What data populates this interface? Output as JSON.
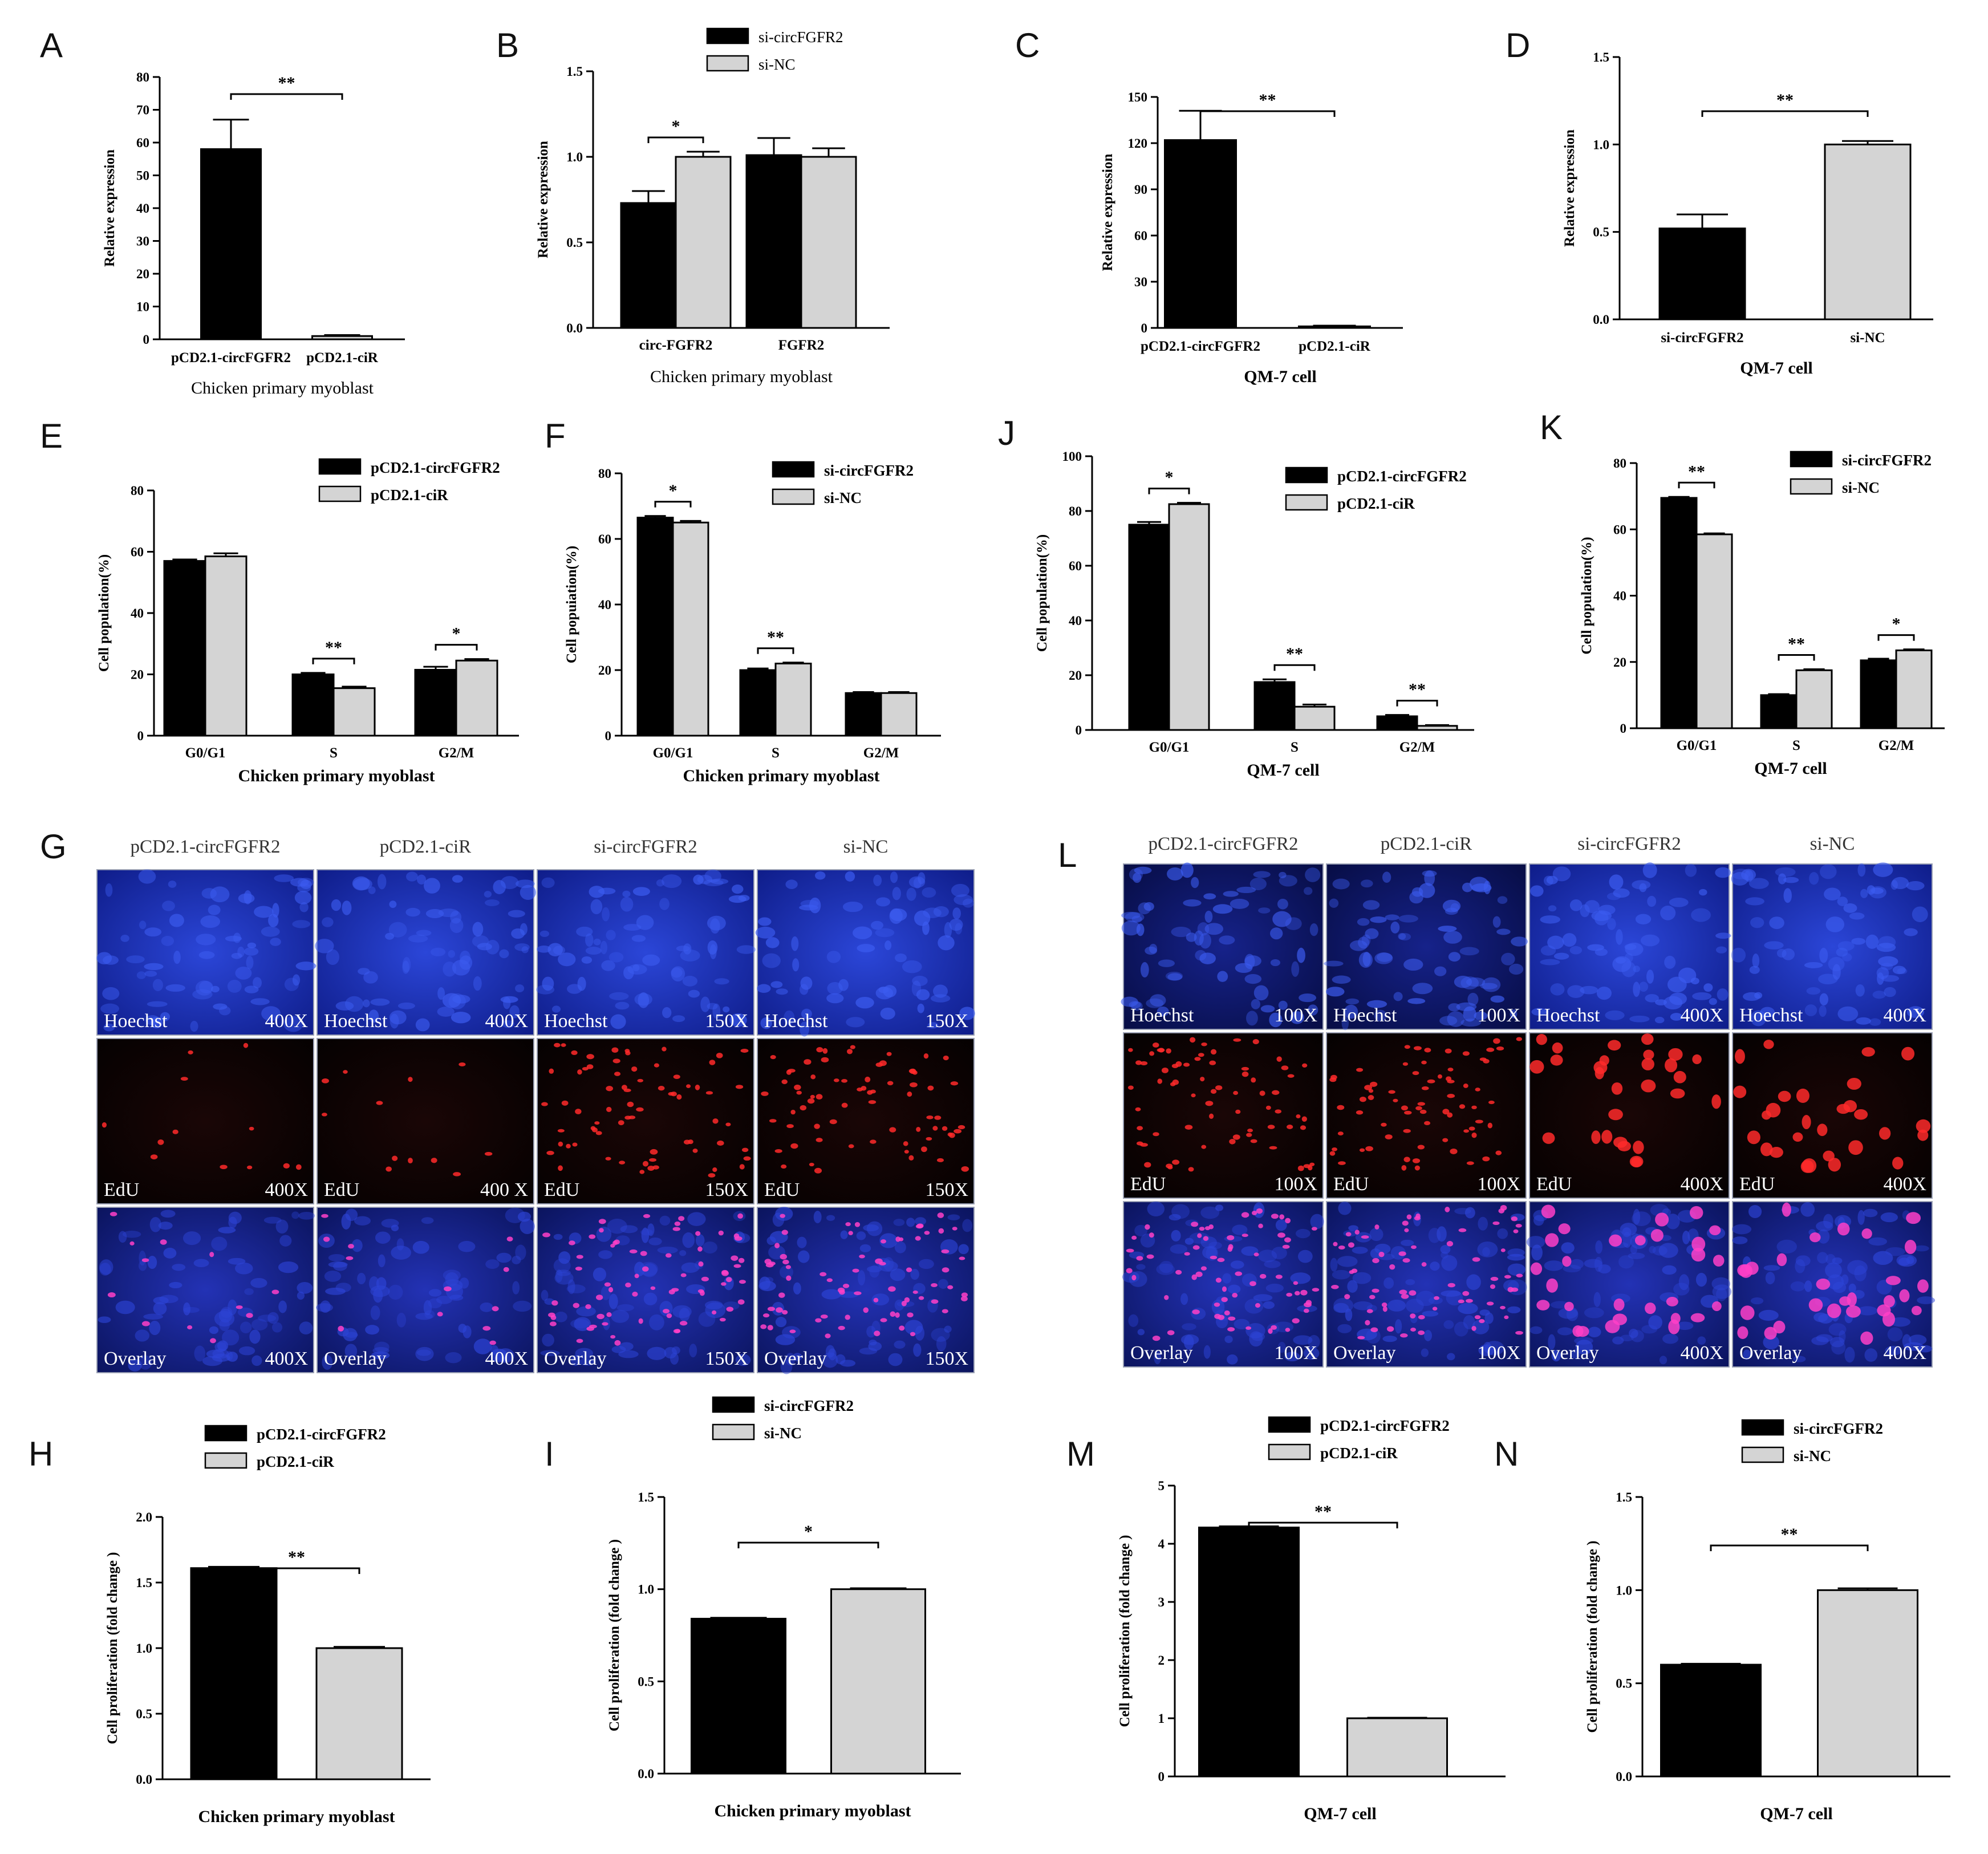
{
  "colors": {
    "black_bar": "#000000",
    "gray_bar": "#d4d4d4",
    "edge": "#000000"
  },
  "chart_data": [
    {
      "panel": "A",
      "type": "bar",
      "categories": [
        "pCD2.1-circFGFR2",
        "pCD2.1-ciR"
      ],
      "series": [
        {
          "name": "",
          "values": [
            58,
            1
          ],
          "errors": [
            9,
            0.3
          ]
        }
      ],
      "bar_colors": [
        "black",
        "gray"
      ],
      "ylabel": "Relative expression",
      "xlabel": "Chicken primary myoblast",
      "ylim": [
        0,
        80
      ],
      "yticks": [
        "0",
        "10",
        "20",
        "30",
        "40",
        "50",
        "60",
        "70",
        "80"
      ],
      "legend": [],
      "sig": [
        {
          "from": 0,
          "to": 1,
          "label": "**"
        }
      ]
    },
    {
      "panel": "B",
      "type": "bar",
      "categories": [
        "circ-FGFR2",
        "FGFR2"
      ],
      "series": [
        {
          "name": "si-circFGFR2",
          "values": [
            0.73,
            1.01
          ],
          "errors": [
            0.07,
            0.1
          ]
        },
        {
          "name": "si-NC",
          "values": [
            1.0,
            1.0
          ],
          "errors": [
            0.03,
            0.05
          ]
        }
      ],
      "ylabel": "Relative expression",
      "xlabel": "Chicken primary myoblast",
      "ylim": [
        0,
        1.5
      ],
      "yticks": [
        "0.0",
        "0.5",
        "1.0",
        "1.5"
      ],
      "legend": [
        "si-circFGFR2",
        "si-NC"
      ],
      "sig": [
        {
          "cat": 0,
          "label": "*"
        }
      ]
    },
    {
      "panel": "C",
      "type": "bar",
      "categories": [
        "pCD2.1-circFGFR2",
        "pCD2.1-ciR"
      ],
      "series": [
        {
          "name": "",
          "values": [
            122,
            1
          ],
          "errors": [
            19,
            0.5
          ]
        }
      ],
      "bar_colors": [
        "black",
        "gray"
      ],
      "ylabel": "Relative expression",
      "xlabel": "QM-7 cell",
      "ylim": [
        0,
        150
      ],
      "yticks": [
        "0",
        "30",
        "60",
        "90",
        "120",
        "150"
      ],
      "legend": [],
      "sig": [
        {
          "from": 0,
          "to": 1,
          "label": "**"
        }
      ]
    },
    {
      "panel": "D",
      "type": "bar",
      "categories": [
        "si-circFGFR2",
        "si-NC"
      ],
      "series": [
        {
          "name": "",
          "values": [
            0.52,
            1.0
          ],
          "errors": [
            0.08,
            0.02
          ]
        }
      ],
      "bar_colors": [
        "black",
        "gray"
      ],
      "ylabel": "Relative  expression",
      "xlabel": "QM-7 cell",
      "ylim": [
        0,
        1.5
      ],
      "yticks": [
        "0.0",
        "0.5",
        "1.0",
        "1.5"
      ],
      "legend": [],
      "sig": [
        {
          "from": 0,
          "to": 1,
          "label": "**"
        }
      ]
    },
    {
      "panel": "E",
      "type": "bar",
      "categories": [
        "G0/G1",
        "S",
        "G2/M"
      ],
      "series": [
        {
          "name": "pCD2.1-circFGFR2",
          "values": [
            57,
            20,
            21.5
          ],
          "errors": [
            0.5,
            0.5,
            1
          ]
        },
        {
          "name": "pCD2.1-ciR",
          "values": [
            58.5,
            15.5,
            24.5
          ],
          "errors": [
            1,
            0.5,
            0.5
          ]
        }
      ],
      "ylabel": "Cell population(%)",
      "xlabel": "Chicken primary myoblast",
      "ylim": [
        0,
        80
      ],
      "yticks": [
        "0",
        "20",
        "40",
        "60",
        "80"
      ],
      "legend": [
        "pCD2.1-circFGFR2",
        "pCD2.1-ciR"
      ],
      "sig": [
        {
          "cat": 1,
          "label": "**"
        },
        {
          "cat": 2,
          "label": "*"
        }
      ]
    },
    {
      "panel": "F",
      "type": "bar",
      "categories": [
        "G0/G1",
        "S",
        "G2/M"
      ],
      "series": [
        {
          "name": "si-circFGFR2",
          "values": [
            66.5,
            20,
            13
          ],
          "errors": [
            0.5,
            0.5,
            0.3
          ]
        },
        {
          "name": "si-NC",
          "values": [
            65,
            22,
            13
          ],
          "errors": [
            0.5,
            0.3,
            0.3
          ]
        }
      ],
      "ylabel": "Cell popuiation(%)",
      "xlabel": "Chicken primary myoblast",
      "ylim": [
        0,
        80
      ],
      "yticks": [
        "0",
        "20",
        "40",
        "60",
        "80"
      ],
      "legend": [
        "si-circFGFR2",
        "si-NC"
      ],
      "sig": [
        {
          "cat": 0,
          "label": "*"
        },
        {
          "cat": 1,
          "label": "**"
        }
      ]
    },
    {
      "panel": "J",
      "type": "bar",
      "categories": [
        "G0/G1",
        "S",
        "G2/M"
      ],
      "series": [
        {
          "name": "pCD2.1-circFGFR2",
          "values": [
            75,
            17.5,
            5
          ],
          "errors": [
            1,
            1,
            0.5
          ]
        },
        {
          "name": "pCD2.1-ciR",
          "values": [
            82.5,
            8.5,
            1.5
          ],
          "errors": [
            0.5,
            0.8,
            0.3
          ]
        }
      ],
      "ylabel": "Cell population(%)",
      "xlabel": "QM-7 cell",
      "ylim": [
        0,
        100
      ],
      "yticks": [
        "0",
        "20",
        "40",
        "60",
        "80",
        "100"
      ],
      "legend": [
        "pCD2.1-circFGFR2",
        "pCD2.1-ciR"
      ],
      "sig": [
        {
          "cat": 0,
          "label": "*"
        },
        {
          "cat": 1,
          "label": "**"
        },
        {
          "cat": 2,
          "label": "**"
        }
      ]
    },
    {
      "panel": "K",
      "type": "bar",
      "categories": [
        "G0/G1",
        "S",
        "G2/M"
      ],
      "series": [
        {
          "name": "si-circFGFR2",
          "values": [
            69.5,
            10,
            20.5
          ],
          "errors": [
            0.3,
            0.3,
            0.5
          ]
        },
        {
          "name": "si-NC",
          "values": [
            58.5,
            17.5,
            23.5
          ],
          "errors": [
            0.3,
            0.3,
            0.3
          ]
        }
      ],
      "ylabel": "Cell population(%)",
      "xlabel": "QM-7 cell",
      "ylim": [
        0,
        80
      ],
      "yticks": [
        "0",
        "20",
        "40",
        "60",
        "80"
      ],
      "legend": [
        "si-circFGFR2",
        "si-NC"
      ],
      "sig": [
        {
          "cat": 0,
          "label": "**"
        },
        {
          "cat": 1,
          "label": "**"
        },
        {
          "cat": 2,
          "label": "*"
        }
      ]
    },
    {
      "panel": "H",
      "type": "bar",
      "categories": [
        "pCD2.1-circFGFR2",
        "pCD2.1-ciR"
      ],
      "series": [
        {
          "name": "",
          "values": [
            1.61,
            1.0
          ],
          "errors": [
            0.01,
            0.01
          ]
        }
      ],
      "bar_colors": [
        "black",
        "gray"
      ],
      "ylabel": "Cell proliferation (fold change )",
      "xlabel": "Chicken primary myoblast",
      "ylim": [
        0,
        2.0
      ],
      "yticks": [
        "0.0",
        "0.5",
        "1.0",
        "1.5",
        "2.0"
      ],
      "legend": [
        "pCD2.1-circFGFR2",
        "pCD2.1-ciR"
      ],
      "hide_categories": true,
      "sig": [
        {
          "from": 0,
          "to": 1,
          "label": "**"
        }
      ]
    },
    {
      "panel": "I",
      "type": "bar",
      "categories": [
        "si-circFGFR2",
        "si-NC"
      ],
      "series": [
        {
          "name": "",
          "values": [
            0.84,
            1.0
          ],
          "errors": [
            0.005,
            0.005
          ]
        }
      ],
      "bar_colors": [
        "black",
        "gray"
      ],
      "ylabel": "Cell proliferation (fold change )",
      "xlabel": "Chicken primary myoblast",
      "ylim": [
        0,
        1.5
      ],
      "yticks": [
        "0.0",
        "0.5",
        "1.0",
        "1.5"
      ],
      "legend": [
        "si-circFGFR2",
        "si-NC"
      ],
      "hide_categories": true,
      "sig": [
        {
          "from": 0,
          "to": 1,
          "label": "*"
        }
      ]
    },
    {
      "panel": "M",
      "type": "bar",
      "categories": [
        "pCD2.1-circFGFR2",
        "pCD2.1-ciR"
      ],
      "series": [
        {
          "name": "",
          "values": [
            4.28,
            1.0
          ],
          "errors": [
            0.02,
            0.01
          ]
        }
      ],
      "bar_colors": [
        "black",
        "gray"
      ],
      "ylabel": "Cell proliferation (fold change )",
      "xlabel": "QM-7 cell",
      "ylim": [
        0,
        5
      ],
      "yticks": [
        "0",
        "1",
        "2",
        "3",
        "4",
        "5"
      ],
      "legend": [
        "pCD2.1-circFGFR2",
        "pCD2.1-ciR"
      ],
      "hide_categories": true,
      "sig": [
        {
          "from": 0,
          "to": 1,
          "label": "**"
        }
      ]
    },
    {
      "panel": "N",
      "type": "bar",
      "categories": [
        "si-circFGFR2",
        "si-NC"
      ],
      "series": [
        {
          "name": "",
          "values": [
            0.6,
            1.0
          ],
          "errors": [
            0.005,
            0.01
          ]
        }
      ],
      "bar_colors": [
        "black",
        "gray"
      ],
      "ylabel": "Cell proliferation (fold change )",
      "xlabel": "QM-7 cell",
      "ylim": [
        0,
        1.5
      ],
      "yticks": [
        "0.0",
        "0.5",
        "1.0",
        "1.5"
      ],
      "legend": [
        "si-circFGFR2",
        "si-NC"
      ],
      "hide_categories": true,
      "sig": [
        {
          "from": 0,
          "to": 1,
          "label": "**"
        }
      ]
    }
  ],
  "microscopy": [
    {
      "panel": "G",
      "columns": [
        "pCD2.1-circFGFR2",
        "pCD2.1-ciR",
        "si-circFGFR2",
        "si-NC"
      ],
      "rows": [
        {
          "stain": "Hoechst",
          "mags": [
            "400X",
            "400X",
            "150X",
            "150X"
          ]
        },
        {
          "stain": "EdU",
          "mags": [
            "400X",
            "400 X",
            "150X",
            "150X"
          ]
        },
        {
          "stain": "Overlay",
          "mags": [
            "400X",
            "400X",
            "150X",
            "150X"
          ]
        }
      ]
    },
    {
      "panel": "L",
      "columns": [
        "pCD2.1-circFGFR2",
        "pCD2.1-ciR",
        "si-circFGFR2",
        "si-NC"
      ],
      "rows": [
        {
          "stain": "Hoechst",
          "mags": [
            "100X",
            "100X",
            "400X",
            "400X"
          ]
        },
        {
          "stain": "EdU",
          "mags": [
            "100X",
            "100X",
            "400X",
            "400X"
          ]
        },
        {
          "stain": "Overlay",
          "mags": [
            "100X",
            "100X",
            "400X",
            "400X"
          ]
        }
      ]
    }
  ]
}
